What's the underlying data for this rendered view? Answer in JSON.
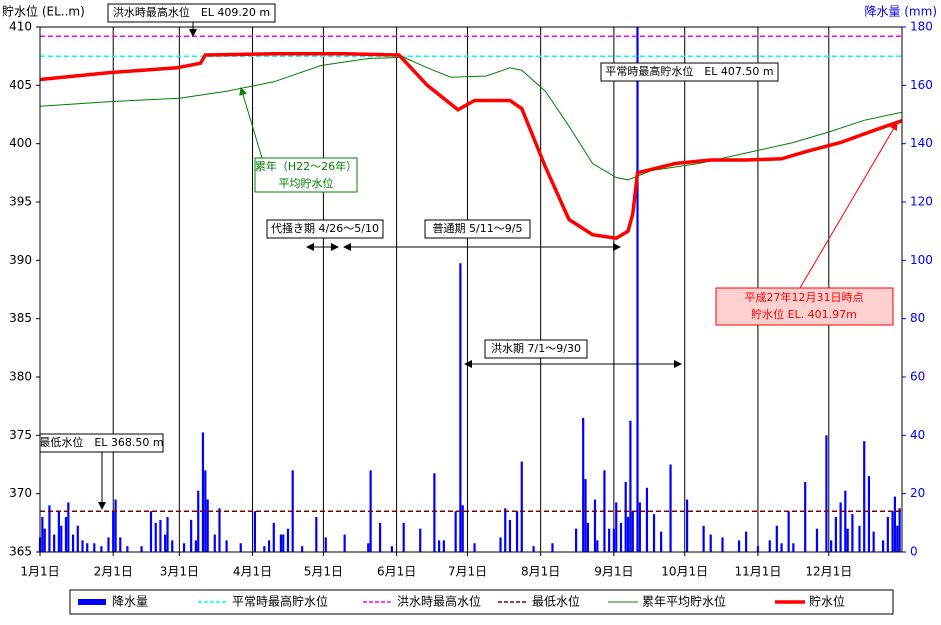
{
  "chart_data": {
    "type": "combo",
    "y_label": "貯水位 (EL..m)",
    "y2_label": "降水量 (mm)",
    "xlim": [
      1,
      366
    ],
    "xticks": [
      {
        "value": 1,
        "label": "1月1日"
      },
      {
        "value": 32,
        "label": "2月1日"
      },
      {
        "value": 60,
        "label": "3月1日"
      },
      {
        "value": 91,
        "label": "4月1日"
      },
      {
        "value": 121,
        "label": "5月1日"
      },
      {
        "value": 152,
        "label": "6月1日"
      },
      {
        "value": 182,
        "label": "7月1日"
      },
      {
        "value": 213,
        "label": "8月1日"
      },
      {
        "value": 244,
        "label": "9月1日"
      },
      {
        "value": 274,
        "label": "10月1日"
      },
      {
        "value": 305,
        "label": "11月1日"
      },
      {
        "value": 335,
        "label": "12月1日"
      }
    ],
    "xgrid": true,
    "ylim": [
      365,
      410
    ],
    "yticks": [
      365,
      370,
      375,
      380,
      385,
      390,
      395,
      400,
      405,
      410
    ],
    "y2lim": [
      0,
      180
    ],
    "y2ticks": [
      0,
      20,
      40,
      60,
      80,
      100,
      120,
      140,
      160,
      180
    ],
    "series": [
      {
        "name": "降水量",
        "type": "bar",
        "axis": "y2",
        "color": "#0000ff",
        "x": [
          1,
          2,
          3,
          5,
          7,
          9,
          10,
          12,
          13,
          15,
          17,
          19,
          21,
          24,
          27,
          30,
          32,
          33,
          35,
          38,
          44,
          48,
          50,
          52,
          54,
          55,
          57,
          62,
          65,
          67,
          68,
          70,
          71,
          72,
          75,
          77,
          80,
          86,
          92,
          96,
          98,
          100,
          103,
          104,
          106,
          108,
          112,
          118,
          122,
          130,
          140,
          141,
          145,
          150,
          155,
          162,
          168,
          170,
          172,
          177,
          179,
          180,
          185,
          196,
          198,
          200,
          203,
          205,
          210,
          218,
          228,
          231,
          232,
          233,
          236,
          237,
          240,
          242,
          244,
          245,
          247,
          249,
          250,
          251,
          252,
          254,
          255,
          258,
          261,
          264,
          268,
          275,
          282,
          285,
          290,
          297,
          300,
          305,
          310,
          313,
          315,
          318,
          320,
          325,
          330,
          334,
          336,
          338,
          340,
          342,
          343,
          345,
          348,
          350,
          352,
          354,
          358,
          360,
          362,
          363,
          364,
          365
        ],
        "values": [
          5,
          12,
          8,
          16,
          6,
          14,
          9,
          12,
          17,
          6,
          9,
          4,
          3,
          3,
          2,
          5,
          14,
          18,
          5,
          2,
          2,
          14,
          10,
          11,
          6,
          12,
          4,
          3,
          11,
          4,
          21,
          41,
          28,
          18,
          6,
          15,
          4,
          3,
          14,
          2,
          4,
          10,
          6,
          6,
          8,
          28,
          2,
          12,
          5,
          6,
          3,
          28,
          10,
          2,
          10,
          8,
          27,
          4,
          4,
          14,
          99,
          16,
          3,
          5,
          15,
          11,
          14,
          31,
          2,
          3,
          8,
          46,
          25,
          10,
          18,
          4,
          28,
          8,
          8,
          17,
          10,
          24,
          12,
          45,
          14,
          180,
          17,
          22,
          13,
          7,
          30,
          18,
          9,
          6,
          5,
          4,
          7,
          2,
          4,
          9,
          3,
          14,
          3,
          24,
          8,
          40,
          4,
          12,
          17,
          21,
          8,
          13,
          9,
          38,
          26,
          7,
          4,
          12,
          14,
          19,
          9,
          15
        ]
      },
      {
        "name": "平常時最高貯水位",
        "type": "line",
        "dash": true,
        "color": "#00ffff",
        "x": [
          1,
          366
        ],
        "values": [
          407.5,
          407.5
        ]
      },
      {
        "name": "洪水時最高水位",
        "type": "line",
        "dash": true,
        "color": "#ff00ff",
        "x": [
          1,
          366
        ],
        "values": [
          409.2,
          409.2
        ]
      },
      {
        "name": "最低水位",
        "type": "line",
        "dash": true,
        "color": "#800000",
        "x": [
          1,
          366
        ],
        "values": [
          368.5,
          368.5
        ]
      },
      {
        "name": "累年平均貯水位",
        "type": "line",
        "dash": false,
        "color": "#008000",
        "x": [
          1,
          30,
          60,
          80,
          100,
          120,
          140,
          155,
          165,
          175,
          190,
          200,
          205,
          215,
          225,
          235,
          245,
          250,
          260,
          280,
          300,
          320,
          335,
          350,
          366
        ],
        "values": [
          403.2,
          403.6,
          403.9,
          404.5,
          405.3,
          406.7,
          407.3,
          407.4,
          406.5,
          405.7,
          405.8,
          406.5,
          406.3,
          404.5,
          401.5,
          398.3,
          397.1,
          396.9,
          397.7,
          398.3,
          399.2,
          400.1,
          401,
          402,
          402.7
        ]
      },
      {
        "name": "貯水位",
        "type": "line",
        "dash": false,
        "color": "#ff0000",
        "x": [
          1,
          31,
          59,
          69,
          71,
          100,
          130,
          153,
          165,
          178,
          185,
          200,
          205,
          215,
          225,
          235,
          245,
          250,
          252,
          254,
          260,
          270,
          285,
          300,
          315,
          325,
          340,
          355,
          366
        ],
        "values": [
          405.5,
          406.1,
          406.5,
          406.9,
          407.6,
          407.7,
          407.7,
          407.6,
          405,
          402.9,
          403.7,
          403.7,
          403,
          398,
          393.5,
          392.2,
          391.9,
          392.5,
          394,
          397.5,
          397.8,
          398.3,
          398.6,
          398.6,
          398.7,
          399.3,
          400.1,
          401.2,
          401.97
        ]
      }
    ],
    "annotations": [
      "洪水時最高水位　EL 409.20 m",
      "平常時最高貯水位　EL 407.50 m",
      "最低水位　EL 368.50 m",
      "累年（H22～26年）",
      "平均貯水位",
      "代掻き期 4/26～5/10",
      "普通期 5/11～9/5",
      "洪水期 7/1～9/30",
      "平成27年12月31日時点",
      "貯水位 EL. 401.97m"
    ]
  }
}
